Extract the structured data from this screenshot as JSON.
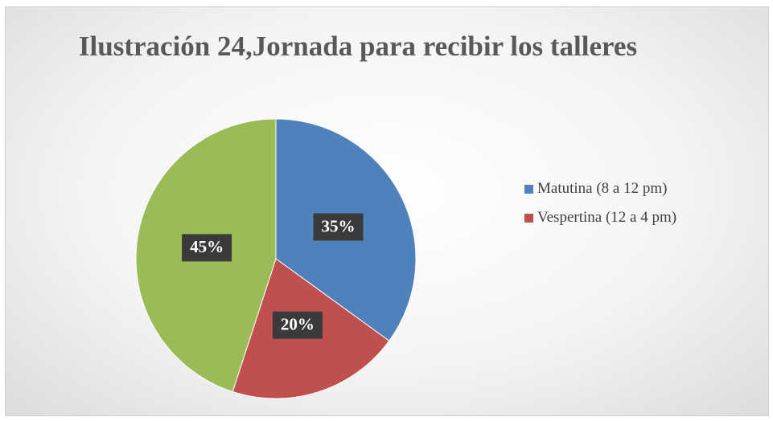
{
  "chart_data": {
    "type": "pie",
    "title": "Ilustración 24,Jornada para recibir los talleres",
    "categories": [
      "Matutina (8 a 12 pm)",
      "Vespertina (12 a 4 pm)",
      null
    ],
    "values": [
      35,
      20,
      45
    ],
    "value_labels": [
      "35%",
      "20%",
      "45%"
    ],
    "colors": [
      "#4f81bd",
      "#c0504d",
      "#9bbb59"
    ],
    "legend": "right"
  }
}
